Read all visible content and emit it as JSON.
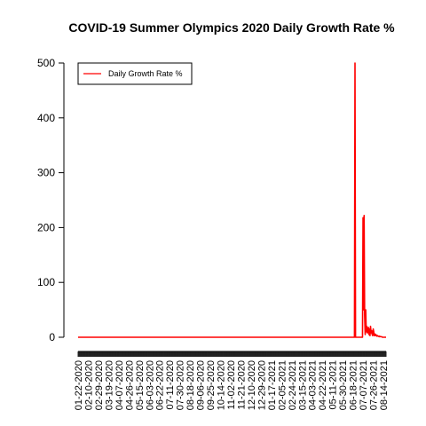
{
  "chart_data": {
    "type": "line",
    "title": "COVID-19 Summer Olympics 2020 Daily Growth Rate %",
    "xlabel": "",
    "ylabel": "",
    "ylim": [
      0,
      500
    ],
    "y_ticks": [
      0,
      100,
      200,
      300,
      400,
      500
    ],
    "x_tick_labels": [
      "01-22-2020",
      "02-10-2020",
      "02-29-2020",
      "03-19-2020",
      "04-07-2020",
      "04-26-2020",
      "05-15-2020",
      "06-03-2020",
      "06-22-2020",
      "07-11-2020",
      "07-30-2020",
      "08-18-2020",
      "09-06-2020",
      "09-25-2020",
      "10-14-2020",
      "11-02-2020",
      "11-21-2020",
      "12-10-2020",
      "12-29-2020",
      "01-17-2021",
      "02-05-2021",
      "02-24-2021",
      "03-15-2021",
      "04-03-2021",
      "04-22-2021",
      "05-11-2021",
      "05-30-2021",
      "06-18-2021",
      "07-07-2021",
      "07-26-2021",
      "08-14-2021"
    ],
    "x_start": "01-22-2020",
    "x_end": "08-19-2021",
    "legend": {
      "position": "top-left",
      "entries": [
        "Daily Growth Rate %"
      ]
    },
    "series": [
      {
        "name": "Daily Growth Rate %",
        "color": "#ff0000",
        "points": [
          [
            "01-22-2020",
            0
          ],
          [
            "06-21-2021",
            0
          ],
          [
            "06-22-2021",
            500
          ],
          [
            "06-23-2021",
            0
          ],
          [
            "07-06-2021",
            0
          ],
          [
            "07-07-2021",
            218
          ],
          [
            "07-08-2021",
            50
          ],
          [
            "07-09-2021",
            222
          ],
          [
            "07-10-2021",
            40
          ],
          [
            "07-11-2021",
            5
          ],
          [
            "07-12-2021",
            50
          ],
          [
            "07-13-2021",
            10
          ],
          [
            "07-14-2021",
            20
          ],
          [
            "07-15-2021",
            8
          ],
          [
            "07-16-2021",
            10
          ],
          [
            "07-17-2021",
            18
          ],
          [
            "07-18-2021",
            5
          ],
          [
            "07-19-2021",
            15
          ],
          [
            "07-20-2021",
            3
          ],
          [
            "07-21-2021",
            20
          ],
          [
            "07-22-2021",
            8
          ],
          [
            "07-23-2021",
            12
          ],
          [
            "07-24-2021",
            5
          ],
          [
            "07-25-2021",
            3
          ],
          [
            "07-26-2021",
            15
          ],
          [
            "07-27-2021",
            10
          ],
          [
            "07-28-2021",
            3
          ],
          [
            "07-29-2021",
            6
          ],
          [
            "07-30-2021",
            3
          ],
          [
            "07-31-2021",
            5
          ],
          [
            "08-01-2021",
            3
          ],
          [
            "08-02-2021",
            2
          ],
          [
            "08-03-2021",
            3
          ],
          [
            "08-04-2021",
            2
          ],
          [
            "08-05-2021",
            2
          ],
          [
            "08-06-2021",
            1
          ],
          [
            "08-07-2021",
            2
          ],
          [
            "08-08-2021",
            1
          ],
          [
            "08-09-2021",
            1
          ],
          [
            "08-10-2021",
            1
          ],
          [
            "08-11-2021",
            1
          ],
          [
            "08-12-2021",
            0
          ],
          [
            "08-13-2021",
            0
          ],
          [
            "08-14-2021",
            0
          ],
          [
            "08-15-2021",
            0
          ],
          [
            "08-16-2021",
            0
          ],
          [
            "08-17-2021",
            0
          ],
          [
            "08-18-2021",
            0
          ],
          [
            "08-19-2021",
            0
          ]
        ]
      }
    ],
    "grid": false
  }
}
